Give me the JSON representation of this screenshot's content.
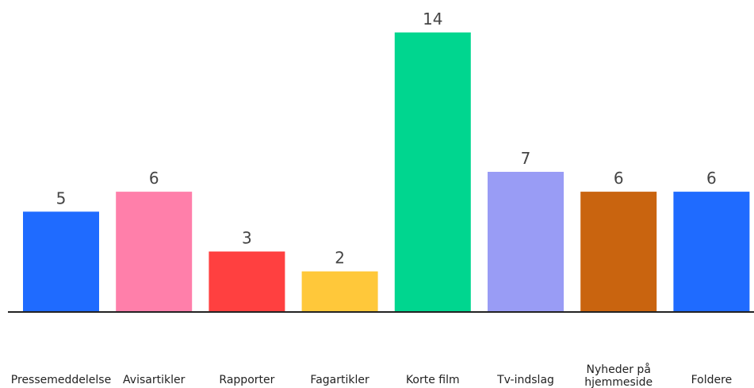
{
  "chart_data": {
    "type": "bar",
    "categories": [
      "Pressemeddelelse",
      "Avisartikler",
      "Rapporter",
      "Fagartikler",
      "Korte film",
      "Tv-indslag",
      "Nyheder på hjemmeside",
      "Foldere"
    ],
    "category_lines": [
      [
        "Pressemeddelelse"
      ],
      [
        "Avisartikler"
      ],
      [
        "Rapporter"
      ],
      [
        "Fagartikler"
      ],
      [
        "Korte film"
      ],
      [
        "Tv-indslag"
      ],
      [
        "Nyheder på",
        "hjemmeside"
      ],
      [
        "Foldere"
      ]
    ],
    "values": [
      5,
      6,
      3,
      2,
      14,
      7,
      6,
      6
    ],
    "colors": [
      "#1f6bff",
      "#ff7faa",
      "#ff4040",
      "#ffc83a",
      "#00d68f",
      "#999cf5",
      "#c9640f",
      "#1f6bff"
    ],
    "title": "",
    "xlabel": "",
    "ylabel": "",
    "ylim": [
      0,
      14
    ],
    "grid": false,
    "legend": "none"
  }
}
